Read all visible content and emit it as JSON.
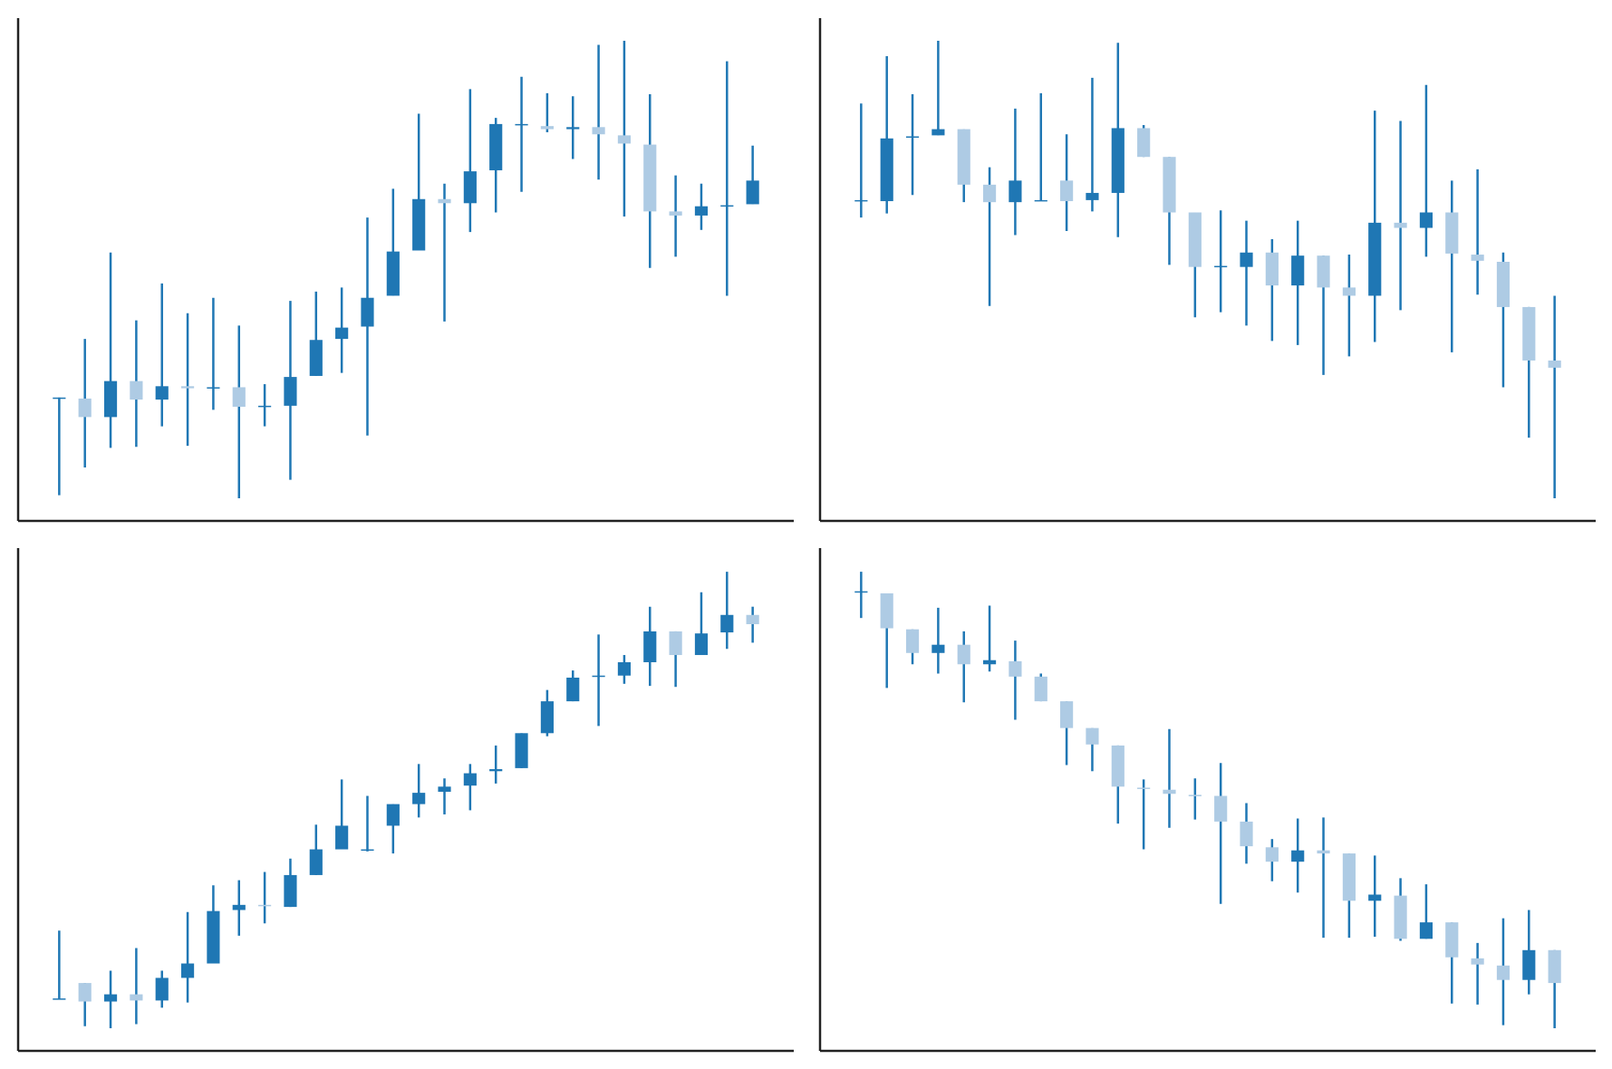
{
  "chart_data": [
    {
      "type": "candlestick",
      "up_color": "#1f77b4",
      "down_color": "#aecbe4",
      "ylim": [
        0,
        489
      ],
      "open": [
        120,
        119,
        101,
        136,
        118,
        131,
        129,
        130,
        111,
        112,
        141,
        177,
        189,
        219,
        263,
        313,
        309,
        341,
        385,
        384,
        381,
        383,
        375,
        366,
        301,
        297,
        306,
        308
      ],
      "high": [
        120,
        177,
        261,
        195,
        231,
        202,
        217,
        190,
        133,
        214,
        223,
        227,
        295,
        323,
        396,
        328,
        420,
        392,
        432,
        416,
        413,
        463,
        467,
        415,
        336,
        328,
        447,
        365
      ],
      "low": [
        25,
        52,
        71,
        72,
        92,
        73,
        108,
        22,
        92,
        40,
        141,
        144,
        83,
        219,
        263,
        194,
        281,
        300,
        320,
        378,
        352,
        332,
        296,
        246,
        257,
        283,
        219,
        308
      ],
      "close": [
        120,
        101,
        136,
        118,
        131,
        129,
        130,
        111,
        112,
        140,
        176,
        188,
        217,
        262,
        313,
        309,
        340,
        386,
        386,
        381,
        383,
        376,
        367,
        301,
        297,
        306,
        307,
        331
      ]
    },
    {
      "type": "candlestick",
      "up_color": "#1f77b4",
      "down_color": "#aecbe4",
      "ylim": [
        0,
        489
      ],
      "open": [
        311,
        311,
        373,
        375,
        381,
        327,
        310,
        311,
        331,
        312,
        319,
        382,
        354,
        300,
        247,
        247,
        261,
        229,
        258,
        227,
        219,
        290,
        285,
        300,
        259,
        252,
        208,
        156
      ],
      "high": [
        406,
        452,
        415,
        467,
        381,
        344,
        401,
        416,
        376,
        431,
        465,
        385,
        354,
        300,
        302,
        292,
        274,
        292,
        258,
        259,
        399,
        389,
        424,
        331,
        342,
        261,
        208,
        219
      ],
      "low": [
        295,
        299,
        317,
        375,
        310,
        209,
        278,
        311,
        282,
        301,
        276,
        354,
        249,
        198,
        203,
        190,
        175,
        171,
        142,
        160,
        174,
        205,
        257,
        164,
        220,
        130,
        81,
        22
      ],
      "close": [
        312,
        372,
        374,
        381,
        327,
        310,
        331,
        312,
        311,
        319,
        382,
        354,
        300,
        247,
        248,
        261,
        229,
        258,
        227,
        219,
        290,
        285,
        300,
        260,
        253,
        208,
        156,
        149
      ]
    },
    {
      "type": "candlestick",
      "up_color": "#1f77b4",
      "down_color": "#aecbe4",
      "ylim": [
        0,
        489
      ],
      "open": [
        50,
        66,
        48,
        55,
        49,
        71,
        85,
        137,
        142,
        140,
        171,
        196,
        195,
        219,
        240,
        252,
        258,
        272,
        275,
        309,
        340,
        364,
        365,
        378,
        408,
        385,
        407,
        424
      ],
      "high": [
        117,
        66,
        78,
        100,
        78,
        135,
        161,
        166,
        174,
        187,
        220,
        264,
        248,
        240,
        279,
        265,
        279,
        297,
        309,
        351,
        370,
        405,
        385,
        432,
        408,
        446,
        466,
        432
      ],
      "low": [
        50,
        24,
        22,
        26,
        42,
        47,
        85,
        112,
        124,
        140,
        171,
        196,
        194,
        192,
        227,
        230,
        234,
        260,
        275,
        306,
        340,
        316,
        357,
        355,
        354,
        385,
        391,
        397
      ],
      "close": [
        51,
        48,
        55,
        49,
        71,
        85,
        136,
        142,
        141,
        171,
        196,
        219,
        196,
        240,
        251,
        257,
        270,
        274,
        309,
        340,
        363,
        365,
        378,
        408,
        385,
        406,
        424,
        415
      ]
    },
    {
      "type": "candlestick",
      "up_color": "#1f77b4",
      "down_color": "#aecbe4",
      "ylim": [
        0,
        489
      ],
      "open": [
        446,
        445,
        410,
        387,
        395,
        376,
        379,
        364,
        340,
        314,
        297,
        256,
        254,
        249,
        248,
        223,
        198,
        184,
        195,
        192,
        146,
        151,
        109,
        125,
        90,
        83,
        69,
        98
      ],
      "high": [
        466,
        445,
        410,
        431,
        408,
        433,
        399,
        367,
        340,
        314,
        297,
        264,
        313,
        265,
        280,
        241,
        206,
        226,
        227,
        192,
        190,
        168,
        162,
        125,
        105,
        129,
        137,
        98
      ],
      "low": [
        421,
        353,
        376,
        367,
        339,
        369,
        322,
        340,
        278,
        272,
        221,
        196,
        217,
        225,
        143,
        182,
        165,
        154,
        110,
        110,
        111,
        107,
        109,
        46,
        45,
        25,
        55,
        22
      ],
      "close": [
        447,
        411,
        387,
        395,
        376,
        380,
        364,
        340,
        314,
        298,
        257,
        255,
        250,
        248,
        223,
        199,
        184,
        195,
        192,
        146,
        152,
        109,
        125,
        91,
        84,
        69,
        98,
        66
      ]
    }
  ]
}
